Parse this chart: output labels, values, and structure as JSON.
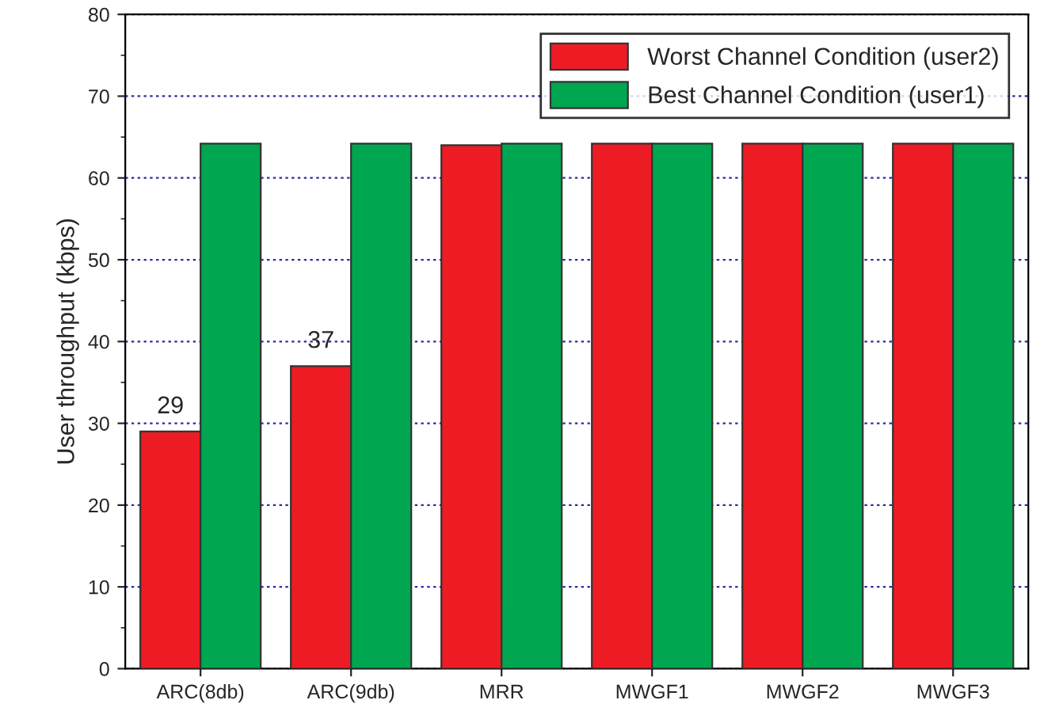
{
  "chart_data": {
    "type": "bar",
    "ylabel": "User throughput (kbps)",
    "categories": [
      "ARC(8db)",
      "ARC(9db)",
      "MRR",
      "MWGF1",
      "MWGF2",
      "MWGF3"
    ],
    "series": [
      {
        "name": "Worst Channel Condition (user2)",
        "color": "#ed1c24",
        "values": [
          29,
          37,
          64,
          64.2,
          64.2,
          64.2
        ],
        "value_labels": [
          "29",
          "37",
          null,
          null,
          null,
          null
        ]
      },
      {
        "name": "Best Channel Condition (user1)",
        "color": "#00a650",
        "values": [
          64.2,
          64.2,
          64.2,
          64.2,
          64.2,
          64.2
        ]
      }
    ],
    "ylim": [
      0,
      80
    ],
    "yticks": [
      0,
      10,
      20,
      30,
      40,
      50,
      60,
      70,
      80
    ],
    "grid": "y",
    "legend": "top right"
  }
}
